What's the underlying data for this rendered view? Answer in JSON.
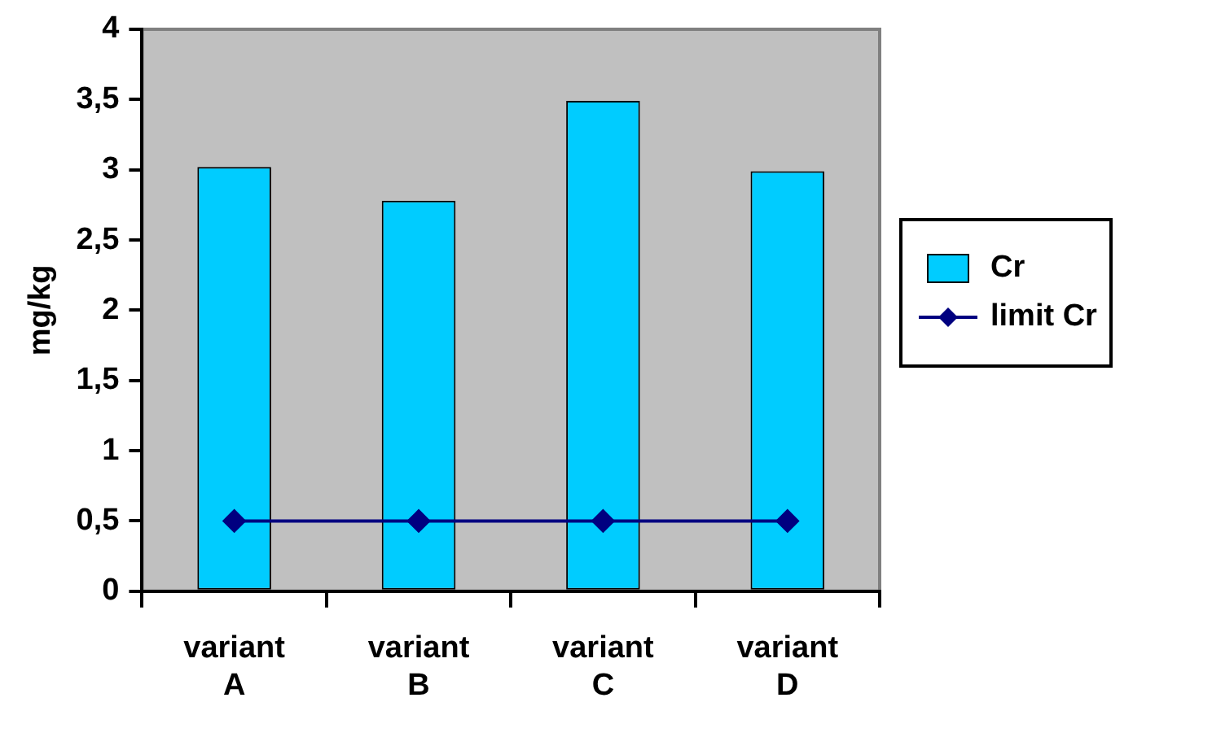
{
  "chart_data": {
    "type": "bar",
    "ylabel": "mg/kg",
    "categories": [
      "variant A",
      "variant B",
      "variant C",
      "variant D"
    ],
    "series": [
      {
        "name": "Cr",
        "color": "#00ccff",
        "values": [
          3.02,
          2.78,
          3.49,
          2.99
        ]
      },
      {
        "name": "limit Cr",
        "type": "line",
        "color": "#000080",
        "values": [
          0.5,
          0.5,
          0.5,
          0.5
        ]
      }
    ],
    "ylim": [
      0,
      4
    ],
    "yticks": [
      0,
      {
        "value": 0.5,
        "label": "0,5"
      },
      1,
      {
        "value": 1.5,
        "label": "1,5"
      },
      2,
      {
        "value": 2.5,
        "label": "2,5"
      },
      3,
      {
        "value": 3.5,
        "label": "3,5"
      },
      4
    ],
    "grid": false,
    "legend": "right",
    "marker": "diamond",
    "line_style": "solid"
  }
}
